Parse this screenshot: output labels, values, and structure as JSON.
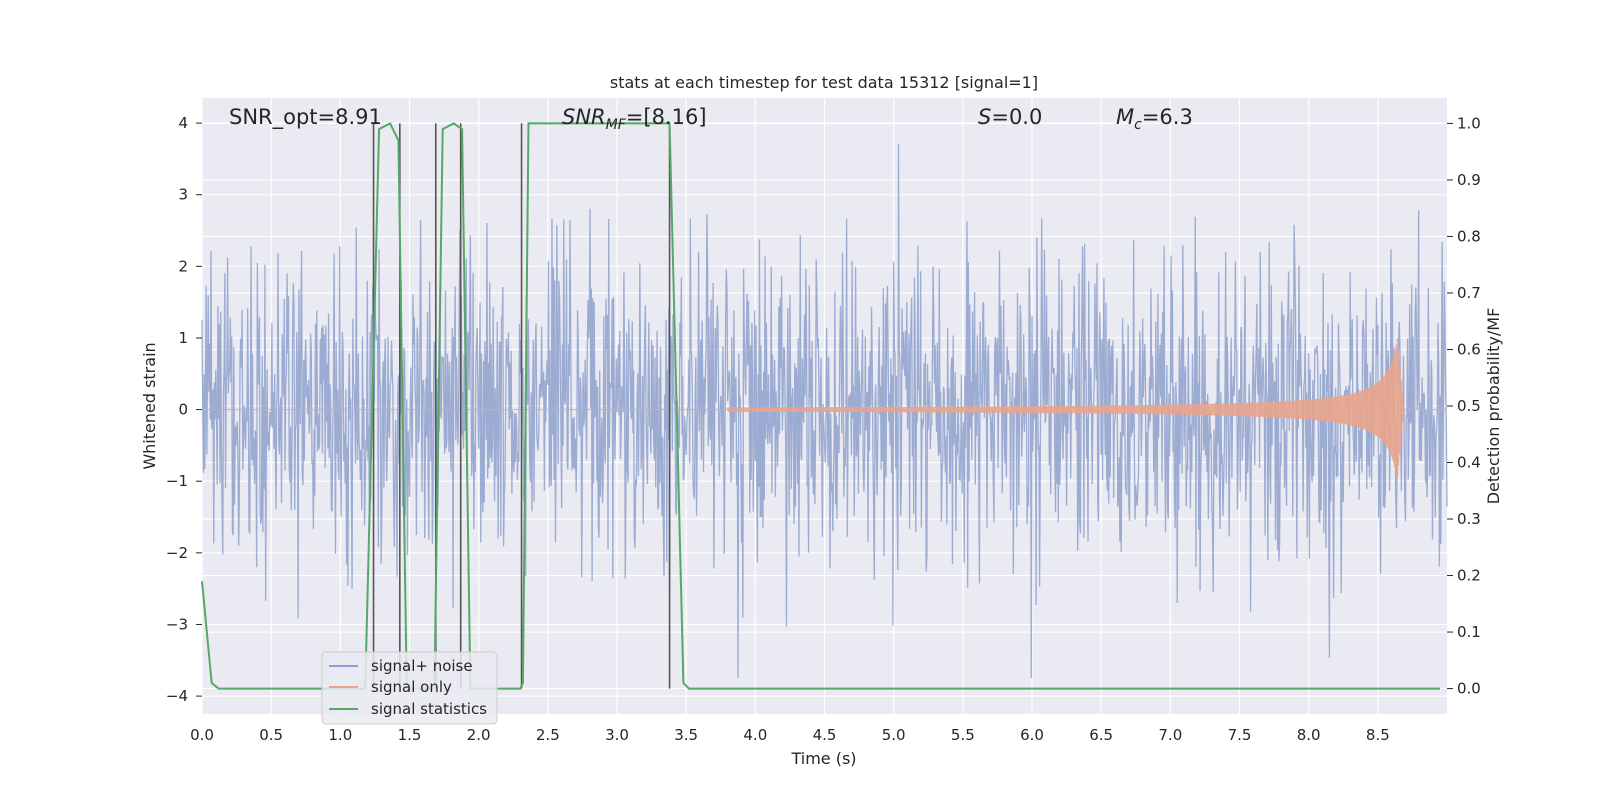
{
  "chart_data": {
    "type": "line",
    "title": "stats at each timestep for test data 15312 [signal=1]",
    "xlabel": "Time (s)",
    "ylabel_left": "Whitened strain",
    "ylabel_right": "Detection probability/MF",
    "xlim": [
      0.0,
      9.0
    ],
    "ylim_left": [
      -4.25,
      4.35
    ],
    "ylim_right": [
      -0.045,
      1.045
    ],
    "x_ticks": [
      "0.0",
      "0.5",
      "1.0",
      "1.5",
      "2.0",
      "2.5",
      "3.0",
      "3.5",
      "4.0",
      "4.5",
      "5.0",
      "5.5",
      "6.0",
      "6.5",
      "7.0",
      "7.5",
      "8.0",
      "8.5"
    ],
    "x_tick_values": [
      0.0,
      0.5,
      1.0,
      1.5,
      2.0,
      2.5,
      3.0,
      3.5,
      4.0,
      4.5,
      5.0,
      5.5,
      6.0,
      6.5,
      7.0,
      7.5,
      8.0,
      8.5
    ],
    "y_left_ticks": [
      "4",
      "3",
      "2",
      "1",
      "0",
      "−1",
      "−2",
      "−3",
      "−4"
    ],
    "y_left_tick_values": [
      4,
      3,
      2,
      1,
      0,
      -1,
      -2,
      -3,
      -4
    ],
    "y_right_ticks": [
      "1.0",
      "0.9",
      "0.8",
      "0.7",
      "0.6",
      "0.5",
      "0.4",
      "0.3",
      "0.2",
      "0.1",
      "0.0"
    ],
    "y_right_tick_values": [
      1.0,
      0.9,
      0.8,
      0.7,
      0.6,
      0.5,
      0.4,
      0.3,
      0.2,
      0.1,
      0.0
    ],
    "annotations": {
      "snr_opt": "SNR_opt=8.91",
      "snr_mf_main": "SNR",
      "snr_mf_sub": "MF",
      "snr_mf_value": "=[8.16]",
      "s_main": "S",
      "s_value": "=0.0",
      "mc_main": "M",
      "mc_sub": "c",
      "mc_value": "=6.3"
    },
    "series": [
      {
        "name": "signal+ noise",
        "axis": "left",
        "color": "#8da0cb",
        "noise_sigma": 1.0,
        "duration": 9.0,
        "samples": 1800
      },
      {
        "name": "signal only",
        "axis": "left",
        "color": "#e8a48c",
        "chirp_start": 3.8,
        "peak_time": 8.64,
        "peak_amplitude": 1.0,
        "end_time": 8.69
      },
      {
        "name": "signal statistics",
        "axis": "right",
        "color": "#55a868",
        "x": [
          0.0,
          0.07,
          0.12,
          1.18,
          1.28,
          1.36,
          1.42,
          1.48,
          1.52,
          1.68,
          1.74,
          1.82,
          1.88,
          1.94,
          2.0,
          2.06,
          2.3,
          2.32,
          2.36,
          2.4,
          3.38,
          3.48,
          3.52,
          8.95
        ],
        "y": [
          0.19,
          0.01,
          0.0,
          0.0,
          0.99,
          1.0,
          0.97,
          0.0,
          0.0,
          0.0,
          0.99,
          1.0,
          0.99,
          0.0,
          0.0,
          0.0,
          0.0,
          0.01,
          1.0,
          1.0,
          1.0,
          0.01,
          0.0,
          0.0
        ]
      }
    ],
    "vertical_lines": [
      1.24,
      1.43,
      1.69,
      1.87,
      2.31,
      3.38
    ],
    "legend": {
      "placement": "lower-left",
      "entries": [
        "signal+ noise",
        "signal only",
        "signal statistics"
      ]
    },
    "colors": {
      "background": "#eaeaf2",
      "grid": "#ffffff",
      "vline": "#555555"
    }
  }
}
